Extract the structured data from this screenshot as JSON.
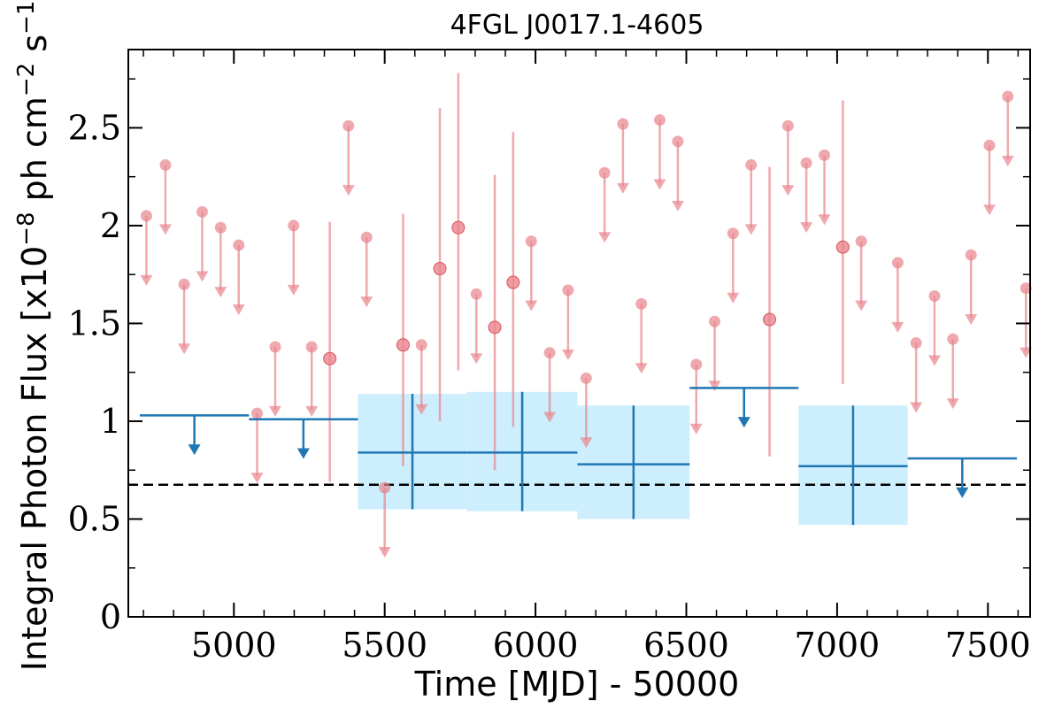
{
  "chart_data": {
    "type": "scatter",
    "title": "4FGL J0017.1-4605",
    "xlabel": "Time [MJD] - 50000",
    "ylabel": "Integral Photon Flux [x10",
    "ylabel_exp": "−8",
    "ylabel_mid": " ph cm",
    "ylabel_exp2": "−2",
    "ylabel_end": " s",
    "ylabel_exp3": "−1",
    "ylabel_close": "]",
    "xlim": [
      4650,
      7640
    ],
    "ylim": [
      0,
      2.9
    ],
    "xticks": [
      5000,
      5500,
      6000,
      6500,
      7000,
      7500
    ],
    "xtick_labels": [
      "5000",
      "5500",
      "6000",
      "6500",
      "7000",
      "7500"
    ],
    "yticks": [
      0,
      0.5,
      1,
      1.5,
      2,
      2.5
    ],
    "ytick_labels": [
      "0",
      "0.5",
      "1",
      "1.5",
      "2",
      "2.5"
    ],
    "grid": false,
    "reference_line": {
      "y": 0.675,
      "style": "dashed",
      "color": "#000000"
    },
    "colors": {
      "fine_bins": "#e8848c",
      "wide_bins": "#1f77b4",
      "wide_error_band": "#cdeefc"
    },
    "fine_upper_limits": [
      {
        "x": 4710,
        "y": 2.05
      },
      {
        "x": 4773,
        "y": 2.31
      },
      {
        "x": 4835,
        "y": 1.7
      },
      {
        "x": 4895,
        "y": 2.07
      },
      {
        "x": 4956,
        "y": 1.99
      },
      {
        "x": 5016,
        "y": 1.9
      },
      {
        "x": 5077,
        "y": 1.04
      },
      {
        "x": 5137,
        "y": 1.38
      },
      {
        "x": 5198,
        "y": 2.0
      },
      {
        "x": 5258,
        "y": 1.38
      },
      {
        "x": 5380,
        "y": 2.51
      },
      {
        "x": 5440,
        "y": 1.94
      },
      {
        "x": 5500,
        "y": 0.66
      },
      {
        "x": 5622,
        "y": 1.39
      },
      {
        "x": 5804,
        "y": 1.65
      },
      {
        "x": 5986,
        "y": 1.92
      },
      {
        "x": 6047,
        "y": 1.35
      },
      {
        "x": 6108,
        "y": 1.67
      },
      {
        "x": 6168,
        "y": 1.22
      },
      {
        "x": 6229,
        "y": 2.27
      },
      {
        "x": 6290,
        "y": 2.52
      },
      {
        "x": 6351,
        "y": 1.6
      },
      {
        "x": 6412,
        "y": 2.54
      },
      {
        "x": 6472,
        "y": 2.43
      },
      {
        "x": 6533,
        "y": 1.29
      },
      {
        "x": 6594,
        "y": 1.51
      },
      {
        "x": 6655,
        "y": 1.96
      },
      {
        "x": 6715,
        "y": 2.31
      },
      {
        "x": 6837,
        "y": 2.51
      },
      {
        "x": 6898,
        "y": 2.32
      },
      {
        "x": 6958,
        "y": 2.36
      },
      {
        "x": 7080,
        "y": 1.92
      },
      {
        "x": 7201,
        "y": 1.81
      },
      {
        "x": 7262,
        "y": 1.4
      },
      {
        "x": 7323,
        "y": 1.64
      },
      {
        "x": 7384,
        "y": 1.42
      },
      {
        "x": 7444,
        "y": 1.85
      },
      {
        "x": 7505,
        "y": 2.41
      },
      {
        "x": 7566,
        "y": 2.66
      },
      {
        "x": 7626,
        "y": 1.68
      }
    ],
    "fine_detections": [
      {
        "x": 5318,
        "y": 1.32,
        "ylow": 0.69,
        "yhigh": 2.02
      },
      {
        "x": 5561,
        "y": 1.39,
        "ylow": 0.77,
        "yhigh": 2.06
      },
      {
        "x": 5683,
        "y": 1.78,
        "ylow": 1.0,
        "yhigh": 2.6
      },
      {
        "x": 5744,
        "y": 1.99,
        "ylow": 1.26,
        "yhigh": 2.78
      },
      {
        "x": 5865,
        "y": 1.48,
        "ylow": 0.75,
        "yhigh": 2.26
      },
      {
        "x": 5926,
        "y": 1.71,
        "ylow": 0.97,
        "yhigh": 2.48
      },
      {
        "x": 7019,
        "y": 1.89,
        "ylow": 1.19,
        "yhigh": 2.64
      },
      {
        "x": 6776,
        "y": 1.52,
        "ylow": 0.82,
        "yhigh": 2.3
      }
    ],
    "wide_upper_limits": [
      {
        "x0": 4688,
        "x1": 5050,
        "y": 1.03
      },
      {
        "x0": 5050,
        "x1": 5411,
        "y": 1.01
      },
      {
        "x0": 6511,
        "x1": 6872,
        "y": 1.17
      },
      {
        "x0": 7234,
        "x1": 7596,
        "y": 0.81
      }
    ],
    "wide_detections": [
      {
        "x0": 5411,
        "x1": 5773,
        "y": 0.84,
        "ylow": 0.55,
        "yhigh": 1.14
      },
      {
        "x0": 5773,
        "x1": 6139,
        "y": 0.84,
        "ylow": 0.54,
        "yhigh": 1.15
      },
      {
        "x0": 6139,
        "x1": 6511,
        "y": 0.78,
        "ylow": 0.5,
        "yhigh": 1.08
      },
      {
        "x0": 6872,
        "x1": 7234,
        "y": 0.77,
        "ylow": 0.47,
        "yhigh": 1.08
      }
    ]
  }
}
